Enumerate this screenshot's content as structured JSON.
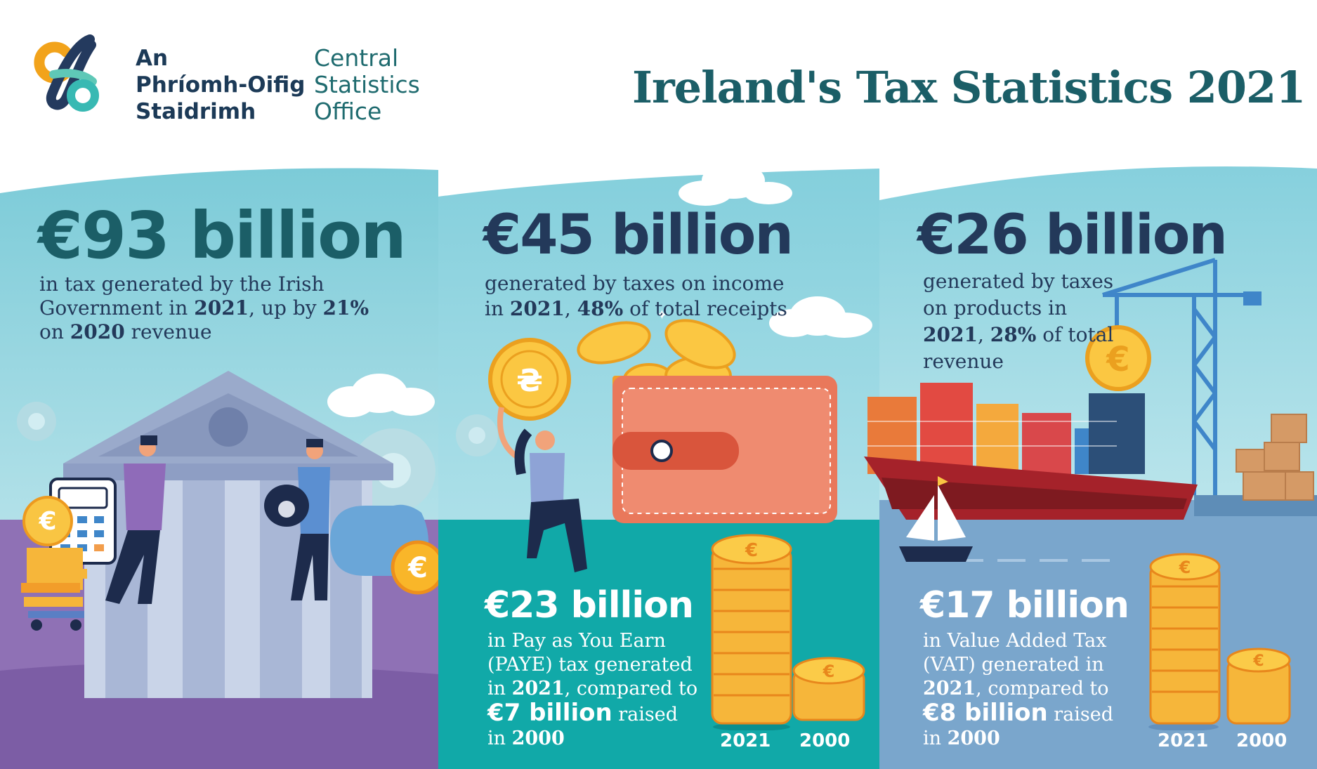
{
  "header": {
    "logo_irish_lines": [
      "An",
      "Phríomh-Oifig",
      "Staidrimh"
    ],
    "logo_english_lines": [
      "Central",
      "Statistics",
      "Office"
    ],
    "title": "Ireland's Tax Statistics 2021"
  },
  "panel_total": {
    "headline": "€93 billion",
    "line1": "in tax generated by the Irish",
    "line2a": "Government in ",
    "line2b": "2021",
    "line2c": ", up by ",
    "line2d": "21%",
    "line3a": "on ",
    "line3b": "2020",
    "line3c": " revenue"
  },
  "panel_income": {
    "headline": "€45 billion",
    "line1": "generated by taxes on income",
    "line2a": "in ",
    "line2b": "2021",
    "line2c": ", ",
    "line2d": "48%",
    "line2e": " of total receipts",
    "sub_headline": "€23 billion",
    "sub1": "in Pay as You Earn",
    "sub2": "(PAYE) tax generated",
    "sub3a": "in ",
    "sub3b": "2021",
    "sub3c": ", compared to",
    "sub4a": "€7 billion",
    "sub4b": " raised",
    "sub5a": "in ",
    "sub5b": "2000",
    "year_2021": "2021",
    "year_2000": "2000"
  },
  "panel_products": {
    "headline": "€26 billion",
    "line1": "generated by taxes",
    "line2": "on products in",
    "line3a": "2021",
    "line3b": ", ",
    "line3c": "28%",
    "line3d": " of total",
    "line4": "revenue",
    "sub_headline": "€17 billion",
    "sub1": "in Value Added Tax",
    "sub2": "(VAT) generated in",
    "sub3a": "2021",
    "sub3b": ", compared to",
    "sub4a": "€8 billion",
    "sub4b": " raised",
    "sub5a": "in ",
    "sub5b": "2000",
    "year_2021": "2021",
    "year_2000": "2000"
  },
  "icons": [
    "csi-logo-icon",
    "bank-building-icon",
    "calculator-icon",
    "money-bag-icon",
    "euro-coin-icon",
    "wallet-icon",
    "gear-icon",
    "cloud-icon",
    "container-ship-icon",
    "crane-icon",
    "sailboat-icon",
    "boxes-icon",
    "coin-stack-icon"
  ],
  "colors": {
    "title": "#1b5e67",
    "dark_text": "#23395a",
    "sky": "#8ed3df",
    "purple": "#8f71b5",
    "teal": "#11a9a8",
    "blue_grey": "#7aa6cc"
  }
}
